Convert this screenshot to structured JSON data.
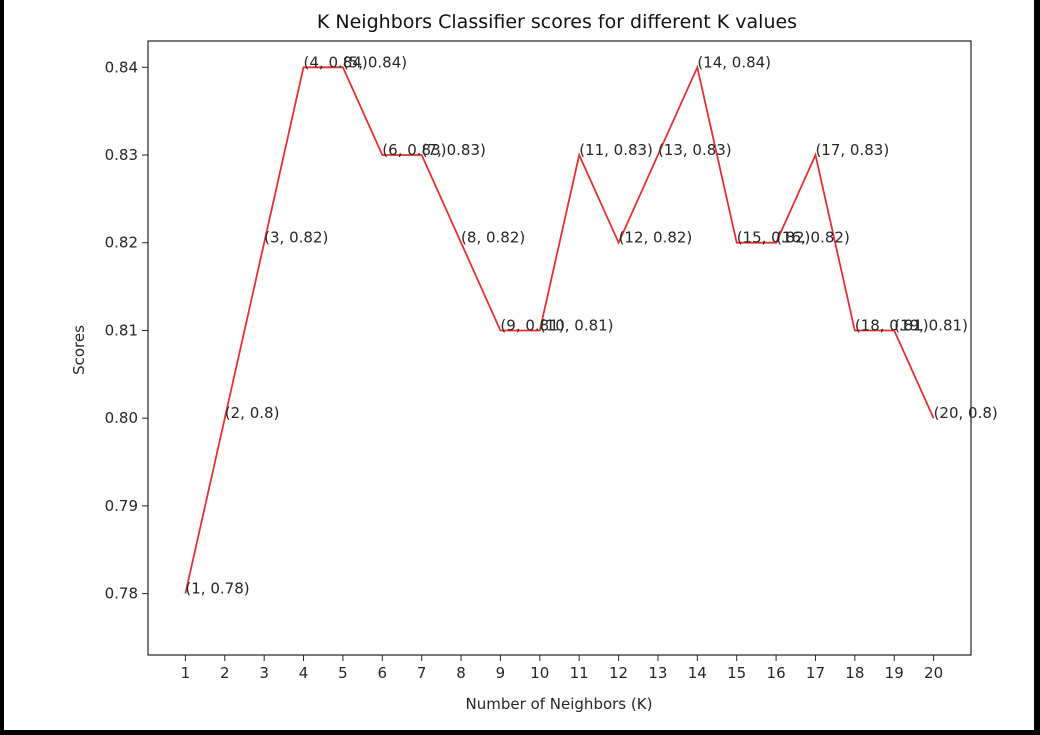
{
  "chart_data": {
    "type": "line",
    "title": "K Neighbors Classifier scores for different K values",
    "xlabel": "Number of Neighbors (K)",
    "ylabel": "Scores",
    "x": [
      1,
      2,
      3,
      4,
      5,
      6,
      7,
      8,
      9,
      10,
      11,
      12,
      13,
      14,
      15,
      16,
      17,
      18,
      19,
      20
    ],
    "series": [
      {
        "values": [
          0.78,
          0.8,
          0.82,
          0.84,
          0.84,
          0.83,
          0.83,
          0.82,
          0.81,
          0.81,
          0.83,
          0.82,
          0.83,
          0.84,
          0.82,
          0.82,
          0.83,
          0.81,
          0.81,
          0.8
        ],
        "color": "#e8312f"
      }
    ],
    "point_labels": [
      "(1, 0.78)",
      "(2, 0.8)",
      "(3, 0.82)",
      "(4, 0.84)",
      "(5, 0.84)",
      "(6, 0.83)",
      "(7, 0.83)",
      "(8, 0.82)",
      "(9, 0.81)",
      "(10, 0.81)",
      "(11, 0.83)",
      "(12, 0.82)",
      "(13, 0.83)",
      "(14, 0.84)",
      "(15, 0.82)",
      "(16, 0.82)",
      "(17, 0.83)",
      "(18, 0.81)",
      "(19, 0.81)",
      "(20, 0.8)"
    ],
    "xticks": [
      "1",
      "2",
      "3",
      "4",
      "5",
      "6",
      "7",
      "8",
      "9",
      "10",
      "11",
      "12",
      "13",
      "14",
      "15",
      "16",
      "17",
      "18",
      "19",
      "20"
    ],
    "yticks": [
      "0.78",
      "0.79",
      "0.80",
      "0.81",
      "0.82",
      "0.83",
      "0.84"
    ],
    "xlim": [
      0.05,
      20.95
    ],
    "ylim": [
      0.773,
      0.843
    ],
    "grid": false,
    "legend": "none"
  }
}
